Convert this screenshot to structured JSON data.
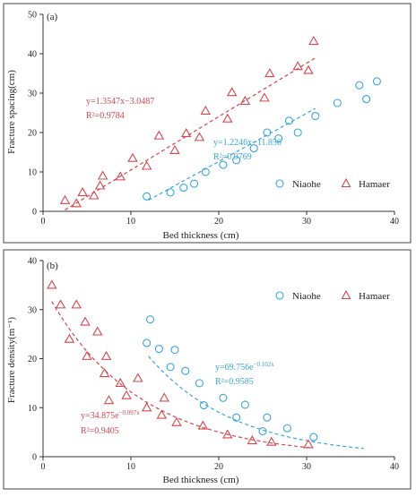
{
  "colors": {
    "niaohe": "#3aa5dc",
    "hamaer": "#d4474f"
  },
  "chart_data": [
    {
      "type": "scatter",
      "panel_label": "(a)",
      "xlabel": "Bed thickness (cm)",
      "ylabel": "Fracture spacing(cm)",
      "xlim": [
        0,
        40
      ],
      "ylim": [
        0,
        50
      ],
      "xticks": [
        "0",
        "10",
        "20",
        "30",
        "40"
      ],
      "yticks": [
        "0",
        "10",
        "20",
        "30",
        "40",
        "50"
      ],
      "legend_position": "bottom-right",
      "series": [
        {
          "name": "Niaohe",
          "marker": "circle",
          "color": "#3aa5dc",
          "points": [
            [
              11.8,
              3.8
            ],
            [
              14.5,
              4.8
            ],
            [
              16,
              6
            ],
            [
              17.2,
              7
            ],
            [
              18.5,
              10
            ],
            [
              20.5,
              11.8
            ],
            [
              22,
              13
            ],
            [
              24,
              16
            ],
            [
              25.5,
              20
            ],
            [
              26.8,
              18.5
            ],
            [
              28,
              23
            ],
            [
              29,
              20
            ],
            [
              31,
              24.2
            ],
            [
              33.5,
              27.5
            ],
            [
              36,
              32
            ],
            [
              36.8,
              28.5
            ],
            [
              38,
              33
            ]
          ],
          "fit": {
            "form": "linear",
            "a": 1.2246,
            "b": -11.856,
            "x_range": [
              12,
              31
            ],
            "equation": "y=1.2246x−11.856",
            "r2": "R²=0.9769"
          }
        },
        {
          "name": "Hamaer",
          "marker": "triangle",
          "color": "#d4474f",
          "points": [
            [
              2.5,
              2.8
            ],
            [
              3.8,
              2
            ],
            [
              4.5,
              4.8
            ],
            [
              5.8,
              4
            ],
            [
              6.5,
              6.5
            ],
            [
              6.8,
              9
            ],
            [
              8.8,
              8.8
            ],
            [
              10.2,
              13.5
            ],
            [
              11.8,
              11.5
            ],
            [
              13.2,
              19.2
            ],
            [
              15,
              15.5
            ],
            [
              16.3,
              19.8
            ],
            [
              17.8,
              18.8
            ],
            [
              18.5,
              25.5
            ],
            [
              21,
              23.5
            ],
            [
              21.5,
              30.2
            ],
            [
              23,
              28
            ],
            [
              25.2,
              28.8
            ],
            [
              25.8,
              35
            ],
            [
              29,
              36.8
            ],
            [
              30.2,
              35.8
            ],
            [
              30.8,
              43.2
            ]
          ],
          "fit": {
            "form": "linear",
            "a": 1.3547,
            "b": -3.0487,
            "x_range": [
              2.5,
              31
            ],
            "equation": "y=1.3547x−3.0487",
            "r2": "R²=0.9784"
          }
        }
      ]
    },
    {
      "type": "scatter",
      "panel_label": "(b)",
      "xlabel": "Bed thickness (cm)",
      "ylabel": "Fracture density(m⁻¹)",
      "xlim": [
        0,
        40
      ],
      "ylim": [
        0,
        40
      ],
      "xticks": [
        "0",
        "10",
        "20",
        "30",
        "40"
      ],
      "yticks": [
        "0",
        "10",
        "20",
        "30",
        "40"
      ],
      "legend_position": "top-right",
      "series": [
        {
          "name": "Niaohe",
          "marker": "circle",
          "color": "#3aa5dc",
          "points": [
            [
              11.8,
              23.2
            ],
            [
              12.2,
              28
            ],
            [
              13.2,
              22
            ],
            [
              14.5,
              18.3
            ],
            [
              15,
              21.8
            ],
            [
              16.2,
              17.5
            ],
            [
              17.8,
              15
            ],
            [
              18.3,
              10.5
            ],
            [
              20.5,
              12
            ],
            [
              22,
              8
            ],
            [
              23,
              10.6
            ],
            [
              25,
              5.2
            ],
            [
              25.5,
              8
            ],
            [
              27.8,
              5.8
            ],
            [
              30.8,
              4
            ]
          ],
          "fit": {
            "form": "exp",
            "a": 69.756,
            "b": -0.102,
            "x_range": [
              12,
              36.5
            ],
            "equation": "y=69.756e",
            "exponent": "−0.102x",
            "r2": "R²=0.9585"
          }
        },
        {
          "name": "Hamaer",
          "marker": "triangle",
          "color": "#d4474f",
          "points": [
            [
              1,
              35
            ],
            [
              2,
              31
            ],
            [
              3,
              24
            ],
            [
              3.8,
              31
            ],
            [
              4.8,
              27.5
            ],
            [
              5,
              20.5
            ],
            [
              6.2,
              25.5
            ],
            [
              7,
              17
            ],
            [
              7.2,
              20.5
            ],
            [
              7.5,
              11.5
            ],
            [
              8.8,
              15
            ],
            [
              9.5,
              12.5
            ],
            [
              10.8,
              16
            ],
            [
              11.8,
              10
            ],
            [
              13.5,
              8.5
            ],
            [
              13.8,
              12
            ],
            [
              15.2,
              7
            ],
            [
              18.2,
              6.3
            ],
            [
              21,
              4.5
            ],
            [
              23.8,
              3.3
            ],
            [
              26,
              3
            ],
            [
              30.2,
              2.5
            ]
          ],
          "fit": {
            "form": "exp",
            "a": 34.875,
            "b": -0.097,
            "x_range": [
              1,
              30.5
            ],
            "equation": "y=34.875e",
            "exponent": "−0.097x",
            "r2": "R²=0.9405"
          }
        }
      ]
    }
  ]
}
